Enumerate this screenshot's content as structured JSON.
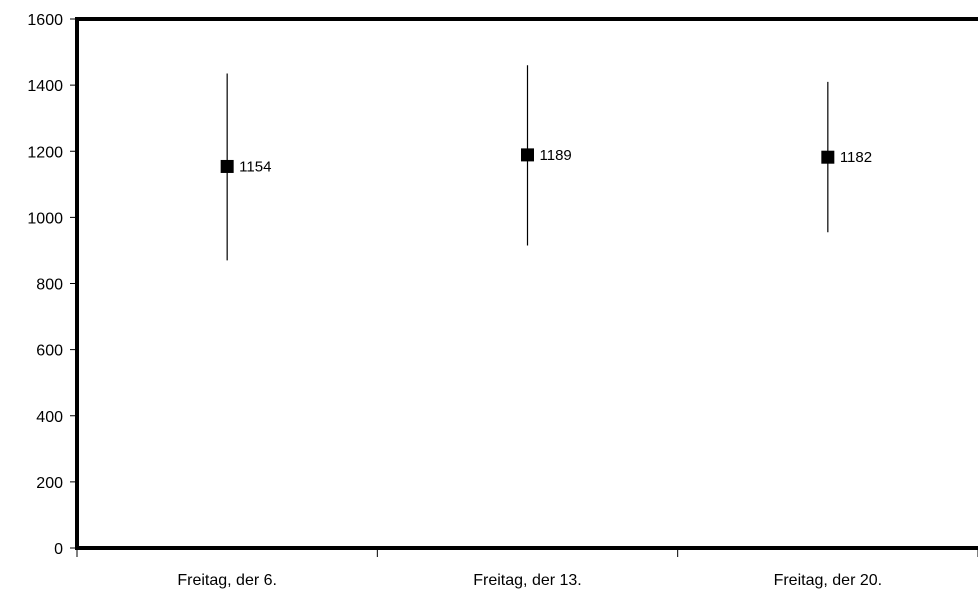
{
  "chart_data": {
    "type": "scatter",
    "categories": [
      "Freitag, der 6.",
      "Freitag, der 13.",
      "Freitag, der 20."
    ],
    "values": [
      1154,
      1189,
      1182
    ],
    "error_low": [
      870,
      915,
      955
    ],
    "error_high": [
      1435,
      1460,
      1410
    ],
    "data_labels": [
      "1154",
      "1189",
      "1182"
    ],
    "ylim": [
      0,
      1600
    ],
    "yticks": [
      0,
      200,
      400,
      600,
      800,
      1000,
      1200,
      1400,
      1600
    ],
    "ytick_labels": [
      "0",
      "200",
      "400",
      "600",
      "800",
      "1000",
      "1200",
      "1400",
      "1600"
    ],
    "grid": false,
    "legend": "none",
    "colors": {
      "marker": "#000000",
      "axis": "#000000"
    }
  }
}
